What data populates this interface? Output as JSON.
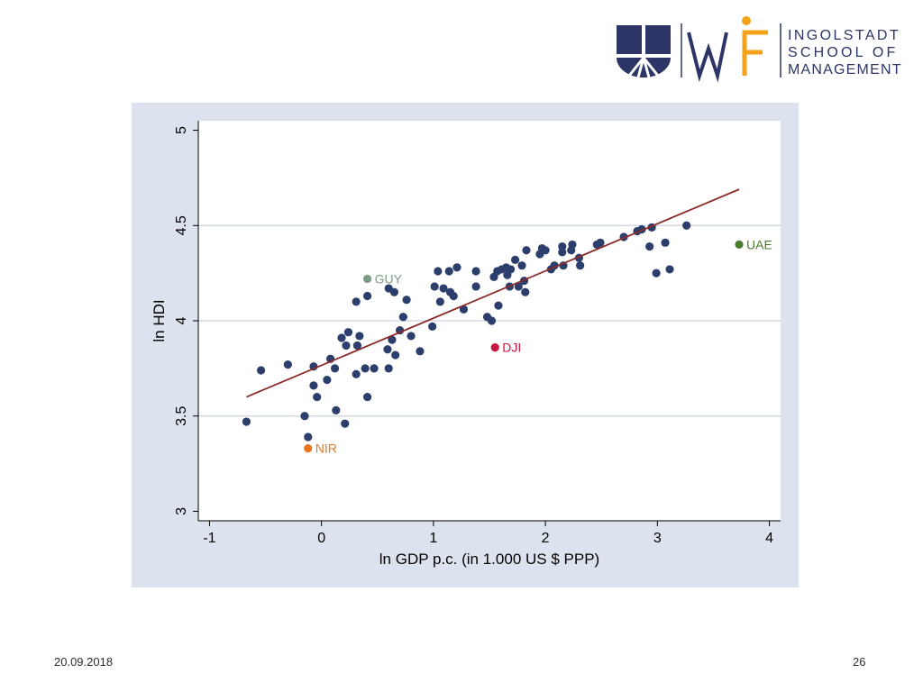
{
  "logo": {
    "text_lines": [
      "INGOLSTADT",
      "SCHOOL OF",
      "MANAGEMENT"
    ],
    "colors": {
      "navy": "#2c3566",
      "orange": "#f3a21a"
    }
  },
  "footer": {
    "date": "20.09.2018",
    "page": "26"
  },
  "chart_data": {
    "type": "scatter",
    "xlabel": "ln GDP p.c. (in 1.000 US $ PPP)",
    "ylabel": "ln HDI",
    "xlim": [
      -1.1,
      4.1
    ],
    "ylim": [
      2.95,
      5.05
    ],
    "xticks": [
      -1,
      0,
      1,
      2,
      3,
      4
    ],
    "yticks": [
      3,
      3.5,
      4,
      4.5,
      5
    ],
    "ytick_labels": [
      "3",
      "3.5",
      "4",
      "4.5",
      "5"
    ],
    "grid": "horizontal",
    "colors": {
      "points": "#2c3e6b",
      "fit": "#8b2a2a",
      "grid": "#d3dae6",
      "plot_bg": "#ffffff",
      "frame_bg": "#dde3ee"
    },
    "fit_line": {
      "x": [
        -0.67,
        3.73
      ],
      "y": [
        3.6,
        4.69
      ]
    },
    "series": [
      {
        "points": [
          [
            -0.67,
            3.47
          ],
          [
            -0.54,
            3.74
          ],
          [
            -0.3,
            3.77
          ],
          [
            -0.15,
            3.5
          ],
          [
            -0.12,
            3.39
          ],
          [
            -0.07,
            3.76
          ],
          [
            -0.07,
            3.66
          ],
          [
            -0.04,
            3.6
          ],
          [
            0.05,
            3.69
          ],
          [
            0.08,
            3.8
          ],
          [
            0.12,
            3.75
          ],
          [
            0.13,
            3.53
          ],
          [
            0.18,
            3.91
          ],
          [
            0.21,
            3.46
          ],
          [
            0.22,
            3.87
          ],
          [
            0.24,
            3.94
          ],
          [
            0.31,
            4.1
          ],
          [
            0.31,
            3.72
          ],
          [
            0.32,
            3.87
          ],
          [
            0.34,
            3.92
          ],
          [
            0.39,
            3.75
          ],
          [
            0.41,
            4.13
          ],
          [
            0.41,
            3.6
          ],
          [
            0.47,
            3.75
          ],
          [
            0.59,
            3.85
          ],
          [
            0.6,
            4.17
          ],
          [
            0.6,
            3.75
          ],
          [
            0.63,
            3.9
          ],
          [
            0.65,
            4.15
          ],
          [
            0.66,
            3.82
          ],
          [
            0.7,
            3.95
          ],
          [
            0.73,
            4.02
          ],
          [
            0.76,
            4.11
          ],
          [
            0.8,
            3.92
          ],
          [
            0.88,
            3.84
          ],
          [
            0.99,
            3.97
          ],
          [
            1.01,
            4.18
          ],
          [
            1.04,
            4.26
          ],
          [
            1.06,
            4.1
          ],
          [
            1.09,
            4.17
          ],
          [
            1.14,
            4.26
          ],
          [
            1.15,
            4.15
          ],
          [
            1.18,
            4.13
          ],
          [
            1.21,
            4.28
          ],
          [
            1.27,
            4.06
          ],
          [
            1.38,
            4.26
          ],
          [
            1.38,
            4.18
          ],
          [
            1.48,
            4.02
          ],
          [
            1.52,
            4.0
          ],
          [
            1.54,
            4.23
          ],
          [
            1.57,
            4.26
          ],
          [
            1.58,
            4.08
          ],
          [
            1.61,
            4.27
          ],
          [
            1.65,
            4.28
          ],
          [
            1.66,
            4.24
          ],
          [
            1.68,
            4.18
          ],
          [
            1.69,
            4.27
          ],
          [
            1.73,
            4.32
          ],
          [
            1.76,
            4.18
          ],
          [
            1.79,
            4.29
          ],
          [
            1.81,
            4.21
          ],
          [
            1.82,
            4.15
          ],
          [
            1.83,
            4.37
          ],
          [
            1.95,
            4.35
          ],
          [
            1.97,
            4.38
          ],
          [
            2.0,
            4.37
          ],
          [
            2.05,
            4.27
          ],
          [
            2.08,
            4.29
          ],
          [
            2.15,
            4.39
          ],
          [
            2.15,
            4.36
          ],
          [
            2.16,
            4.29
          ],
          [
            2.23,
            4.37
          ],
          [
            2.24,
            4.4
          ],
          [
            2.3,
            4.33
          ],
          [
            2.31,
            4.29
          ],
          [
            2.46,
            4.4
          ],
          [
            2.49,
            4.41
          ],
          [
            2.7,
            4.44
          ],
          [
            2.82,
            4.47
          ],
          [
            2.86,
            4.48
          ],
          [
            2.93,
            4.39
          ],
          [
            2.95,
            4.49
          ],
          [
            2.99,
            4.25
          ],
          [
            3.07,
            4.41
          ],
          [
            3.11,
            4.27
          ],
          [
            3.26,
            4.5
          ]
        ]
      }
    ],
    "labeled_points": [
      {
        "label": "GUY",
        "x": 0.41,
        "y": 4.22,
        "color": "#7d9c86"
      },
      {
        "label": "UAE",
        "x": 3.73,
        "y": 4.4,
        "color": "#4c7a2e"
      },
      {
        "label": "DJI",
        "x": 1.55,
        "y": 3.86,
        "color": "#c8163e"
      },
      {
        "label": "NIR",
        "x": -0.12,
        "y": 3.33,
        "color": "#e87722"
      }
    ]
  }
}
